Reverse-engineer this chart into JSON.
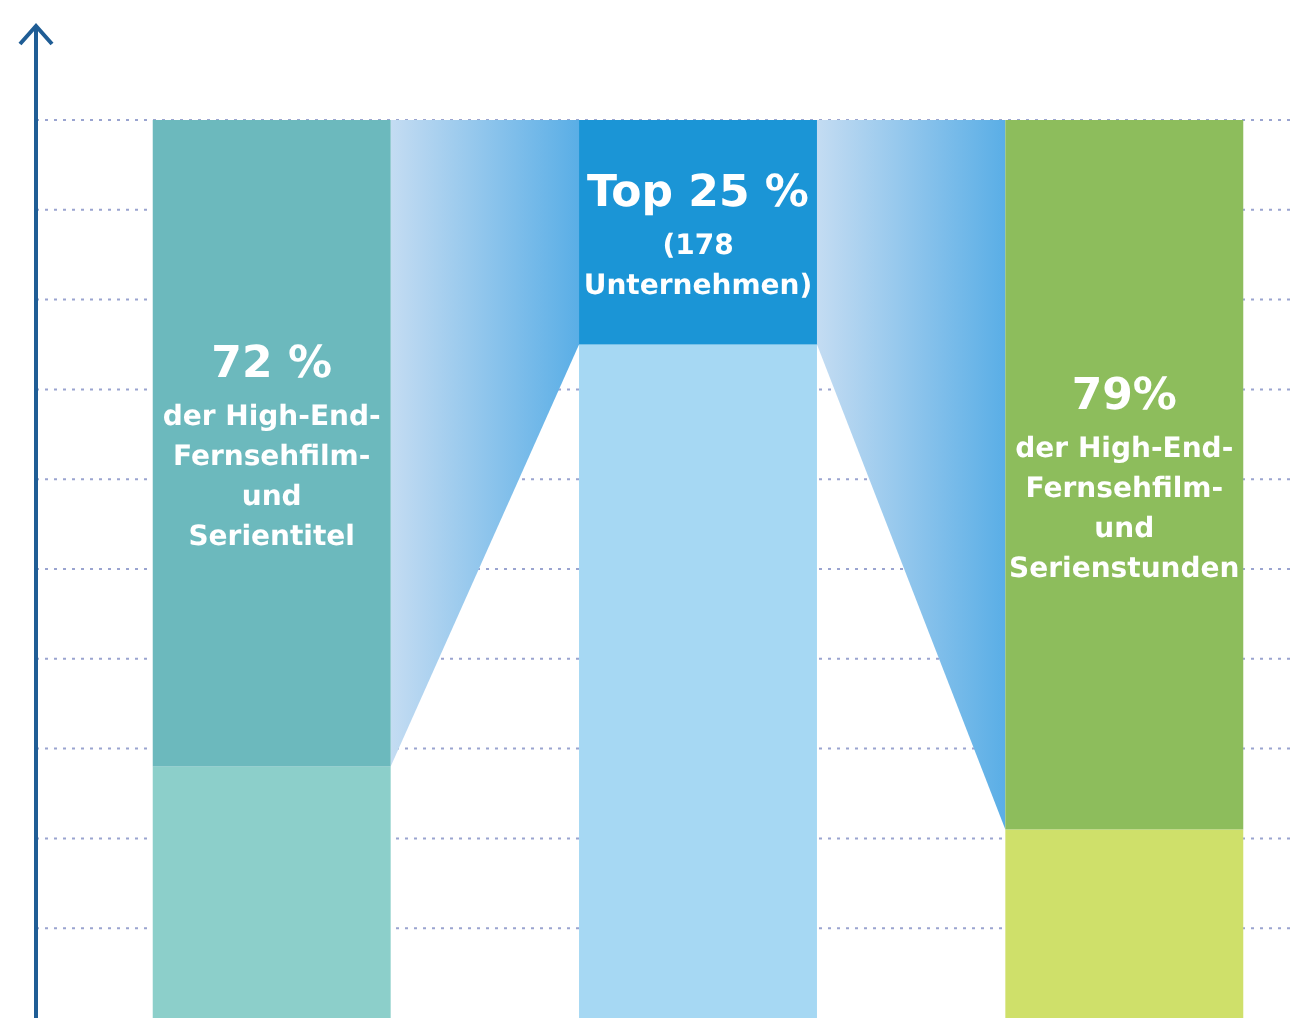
{
  "chart_data": {
    "type": "bar",
    "stacked": true,
    "grid": "y",
    "yticks": [
      {
        "value": 10,
        "label": null
      },
      {
        "value": 20,
        "label": null
      },
      {
        "value": 30,
        "label": null
      },
      {
        "value": 40,
        "label": null
      },
      {
        "value": 50,
        "label": null
      },
      {
        "value": 60,
        "label": null
      },
      {
        "value": 70,
        "label": null
      },
      {
        "value": 80,
        "label": null
      },
      {
        "value": 90,
        "label": null
      },
      {
        "value": 100,
        "label": null
      }
    ],
    "ylim": [
      0,
      100
    ],
    "categories": [
      null,
      null,
      null
    ],
    "series": [
      {
        "colors": [
          "#8ccfca",
          "#a6d8f3",
          "#cfe06a"
        ],
        "values": [
          28,
          75,
          21
        ]
      },
      {
        "colors": [
          "#6cb9bd",
          "#1b95d6",
          "#8dbd5c"
        ],
        "values": [
          72,
          25,
          79
        ],
        "value_labels": [
          "72 %\nder High-End-\nFernsehfilm-\nund\nSerientitel",
          "Top 25 %\n(178\nUnternehmen)",
          "79%\nder High-End-\nFernsehfilm-\nund\nSerienstunden"
        ]
      }
    ]
  }
}
